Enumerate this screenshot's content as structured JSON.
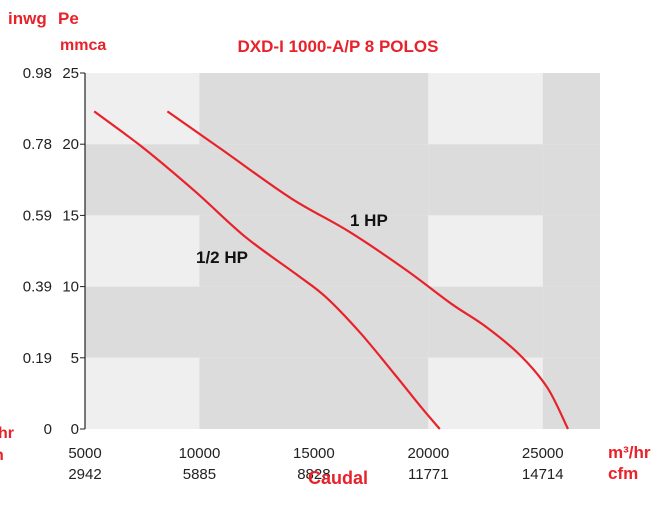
{
  "colors": {
    "accent": "#e8222b",
    "band_light": "#efefef",
    "band_dark": "#dcdcdc"
  },
  "units": {
    "y_left_top": "inwg",
    "y_right_top_1": "Pe",
    "y_right_top_2": "mmca",
    "x_right_1": "m³/hr",
    "x_right_2": "cfm",
    "x_left_cut_1": "hr",
    "x_left_cut_2": "n"
  },
  "chart_data": {
    "type": "line",
    "title": "DXD-I 1000-A/P 8 POLOS",
    "xlabel": "Caudal",
    "xlim": [
      5000,
      27500
    ],
    "ylim": [
      0,
      25
    ],
    "x_ticks": [
      "5000",
      "10000",
      "15000",
      "20000",
      "25000"
    ],
    "x_ticks_secondary": [
      "2942",
      "5885",
      "8828",
      "11771",
      "14714"
    ],
    "y_ticks": [
      "0",
      "5",
      "10",
      "15",
      "20",
      "25"
    ],
    "y_ticks_secondary": [
      "0",
      "0.19",
      "0.39",
      "0.59",
      "0.78",
      "0.98"
    ],
    "grid": "alternating bands",
    "series": [
      {
        "name": "1/2 HP",
        "x": [
          5400,
          7500,
          9800,
          12000,
          14200,
          15500,
          17000,
          18500,
          19700,
          20500
        ],
        "y": [
          22.3,
          19.8,
          16.7,
          13.5,
          10.9,
          9.3,
          6.8,
          3.9,
          1.5,
          0
        ]
      },
      {
        "name": "1 HP",
        "x": [
          8600,
          11000,
          14000,
          16500,
          19000,
          21000,
          22500,
          24000,
          25200,
          26100
        ],
        "y": [
          22.3,
          19.6,
          16.2,
          13.9,
          11.2,
          8.8,
          7.2,
          5.2,
          2.9,
          0
        ]
      }
    ]
  }
}
